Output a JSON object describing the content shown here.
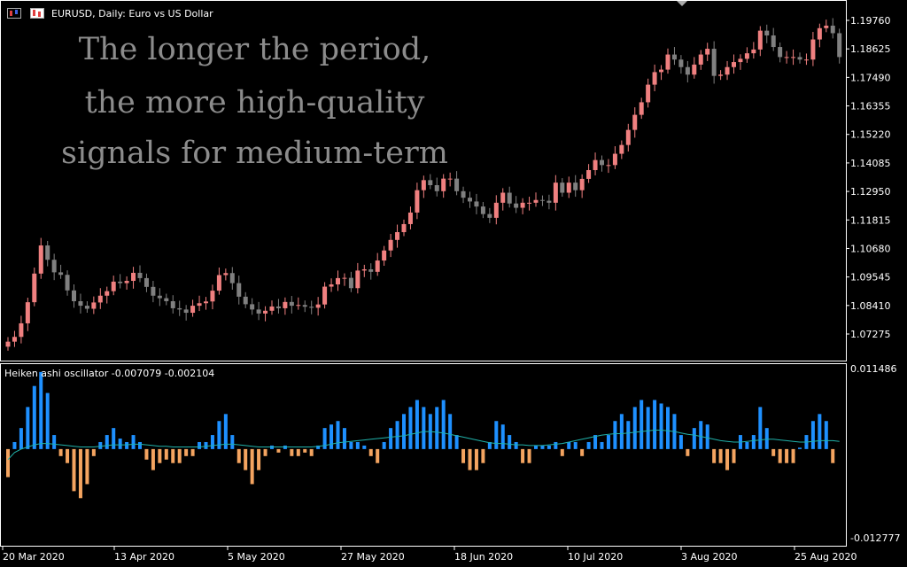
{
  "window": {
    "symbol_title": "EURUSD, Daily:  Euro vs US Dollar",
    "icons": [
      "candlestick-chart-icon",
      "heiken-ashi-icon"
    ]
  },
  "overlay_text": [
    "The longer the period,",
    "the more high-quality",
    "signals for medium-term"
  ],
  "indicator": {
    "title": "Heiken ashi oscillator -0.007079 -0.002104",
    "scale_labels": [
      "0.011486",
      "-0.012777"
    ]
  },
  "colors": {
    "background": "#000000",
    "bull_candle": "#f08080",
    "bear_candle": "#808080",
    "positive_bar": "#1e90ff",
    "negative_bar": "#f4a460",
    "signal_line": "#20b2aa",
    "grid_border": "#ffffff"
  },
  "chart_data": {
    "type": "candlestick",
    "price_axis_labels": [
      "1.19760",
      "1.18625",
      "1.17490",
      "1.16355",
      "1.15220",
      "1.14085",
      "1.12950",
      "1.11815",
      "1.10680",
      "1.09545",
      "1.08410",
      "1.07275"
    ],
    "price_axis_values": [
      1.1976,
      1.18625,
      1.1749,
      1.16355,
      1.1522,
      1.14085,
      1.1295,
      1.11815,
      1.1068,
      1.09545,
      1.0841,
      1.07275
    ],
    "date_labels": [
      "20 Mar 2020",
      "13 Apr 2020",
      "5 May 2020",
      "27 May 2020",
      "18 Jun 2020",
      "10 Jul 2020",
      "3 Aug 2020",
      "25 Aug 2020"
    ],
    "close": [
      1.0697,
      1.0716,
      1.077,
      1.0854,
      1.0968,
      1.108,
      1.1023,
      1.0973,
      1.0963,
      1.0901,
      1.0858,
      1.084,
      1.0828,
      1.0853,
      1.088,
      1.0898,
      1.0936,
      1.093,
      1.0939,
      1.0971,
      1.095,
      1.0915,
      1.088,
      1.087,
      1.0858,
      1.083,
      1.0825,
      1.0812,
      1.084,
      1.085,
      1.0857,
      1.09,
      1.0962,
      1.097,
      1.093,
      1.0876,
      1.0846,
      1.0825,
      1.0809,
      1.082,
      1.0837,
      1.083,
      1.0855,
      1.084,
      1.0843,
      1.0836,
      1.0832,
      1.0845,
      1.0916,
      1.0925,
      1.095,
      1.0951,
      1.091,
      1.098,
      1.0985,
      1.0975,
      1.102,
      1.106,
      1.1102,
      1.1133,
      1.1165,
      1.1211,
      1.13,
      1.134,
      1.132,
      1.1296,
      1.1346,
      1.1346,
      1.1296,
      1.127,
      1.1255,
      1.1235,
      1.1205,
      1.119,
      1.125,
      1.129,
      1.1247,
      1.123,
      1.125,
      1.125,
      1.1261,
      1.1258,
      1.125,
      1.133,
      1.129,
      1.133,
      1.13,
      1.1345,
      1.138,
      1.142,
      1.14,
      1.14,
      1.1445,
      1.148,
      1.154,
      1.16,
      1.165,
      1.172,
      1.177,
      1.178,
      1.184,
      1.182,
      1.179,
      1.176,
      1.18,
      1.184,
      1.1863,
      1.1755,
      1.176,
      1.179,
      1.181,
      1.1823,
      1.1845,
      1.186,
      1.1935,
      1.1916,
      1.187,
      1.183,
      1.183,
      1.183,
      1.182,
      1.182,
      1.19,
      1.1945,
      1.1955,
      1.1925,
      1.183
    ],
    "signal_line_values": [
      -0.0015,
      -0.0005,
      0.0,
      0.0003,
      0.0006,
      0.0008,
      0.0008,
      0.0007,
      0.0006,
      0.0005,
      0.0004,
      0.0003,
      0.0003,
      0.0003,
      0.0004,
      0.0005,
      0.0006,
      0.0006,
      0.0006,
      0.0007,
      0.0007,
      0.0006,
      0.0005,
      0.0004,
      0.0004,
      0.0003,
      0.0003,
      0.0003,
      0.0003,
      0.0003,
      0.0004,
      0.0005,
      0.0006,
      0.0007,
      0.0007,
      0.0006,
      0.0005,
      0.0004,
      0.0003,
      0.0003,
      0.0003,
      0.0003,
      0.0003,
      0.0003,
      0.0003,
      0.0003,
      0.0003,
      0.0004,
      0.0005,
      0.0007,
      0.0009,
      0.001,
      0.0011,
      0.0012,
      0.0013,
      0.0014,
      0.0015,
      0.0016,
      0.0017,
      0.0018,
      0.0019,
      0.0021,
      0.0023,
      0.0025,
      0.0025,
      0.0024,
      0.0023,
      0.0021,
      0.0019,
      0.0017,
      0.0015,
      0.0013,
      0.0011,
      0.0009,
      0.0008,
      0.0008,
      0.0007,
      0.0006,
      0.0006,
      0.0005,
      0.0005,
      0.0005,
      0.0006,
      0.0007,
      0.0008,
      0.001,
      0.0012,
      0.0014,
      0.0016,
      0.0018,
      0.002,
      0.0021,
      0.0022,
      0.0022,
      0.0023,
      0.0024,
      0.0025,
      0.0026,
      0.0027,
      0.0027,
      0.0026,
      0.0025,
      0.0023,
      0.0021,
      0.002,
      0.0018,
      0.0016,
      0.0014,
      0.0012,
      0.0011,
      0.001,
      0.001,
      0.0011,
      0.0012,
      0.0013,
      0.0014,
      0.0014,
      0.0013,
      0.0012,
      0.0011,
      0.001,
      0.001,
      0.0011,
      0.0012,
      0.0012,
      0.0012,
      0.0011
    ],
    "oscillator_values": [
      -0.004,
      0.001,
      0.003,
      0.006,
      0.009,
      0.011,
      0.008,
      0.002,
      -0.001,
      -0.002,
      -0.006,
      -0.007,
      -0.005,
      -0.001,
      0.001,
      0.002,
      0.003,
      0.0015,
      0.001,
      0.002,
      0.001,
      -0.0015,
      -0.003,
      -0.002,
      -0.0015,
      -0.002,
      -0.002,
      -0.001,
      -0.001,
      0.001,
      0.001,
      0.002,
      0.004,
      0.005,
      0.002,
      -0.002,
      -0.003,
      -0.005,
      -0.003,
      -0.001,
      0.0005,
      -0.0005,
      0.0005,
      -0.001,
      -0.001,
      -0.0005,
      -0.001,
      0.0005,
      0.003,
      0.0035,
      0.004,
      0.003,
      0.001,
      0.001,
      0.0005,
      -0.001,
      -0.002,
      0.001,
      0.003,
      0.004,
      0.005,
      0.006,
      0.007,
      0.006,
      0.005,
      0.006,
      0.007,
      0.005,
      0.002,
      -0.002,
      -0.003,
      -0.003,
      -0.002,
      0.001,
      0.004,
      0.0035,
      0.002,
      0.001,
      -0.002,
      -0.002,
      0.0005,
      0.0005,
      0.0005,
      0.001,
      -0.001,
      0.001,
      0.001,
      -0.001,
      0.001,
      0.002,
      0.001,
      0.002,
      0.004,
      0.005,
      0.004,
      0.006,
      0.007,
      0.006,
      0.007,
      0.0065,
      0.006,
      0.005,
      0.002,
      -0.001,
      0.003,
      0.004,
      0.0035,
      -0.002,
      -0.002,
      -0.003,
      -0.002,
      0.002,
      0.001,
      0.002,
      0.006,
      0.003,
      -0.001,
      -0.002,
      -0.002,
      -0.002,
      0.0002,
      0.002,
      0.004,
      0.005,
      0.004,
      -0.002
    ]
  }
}
